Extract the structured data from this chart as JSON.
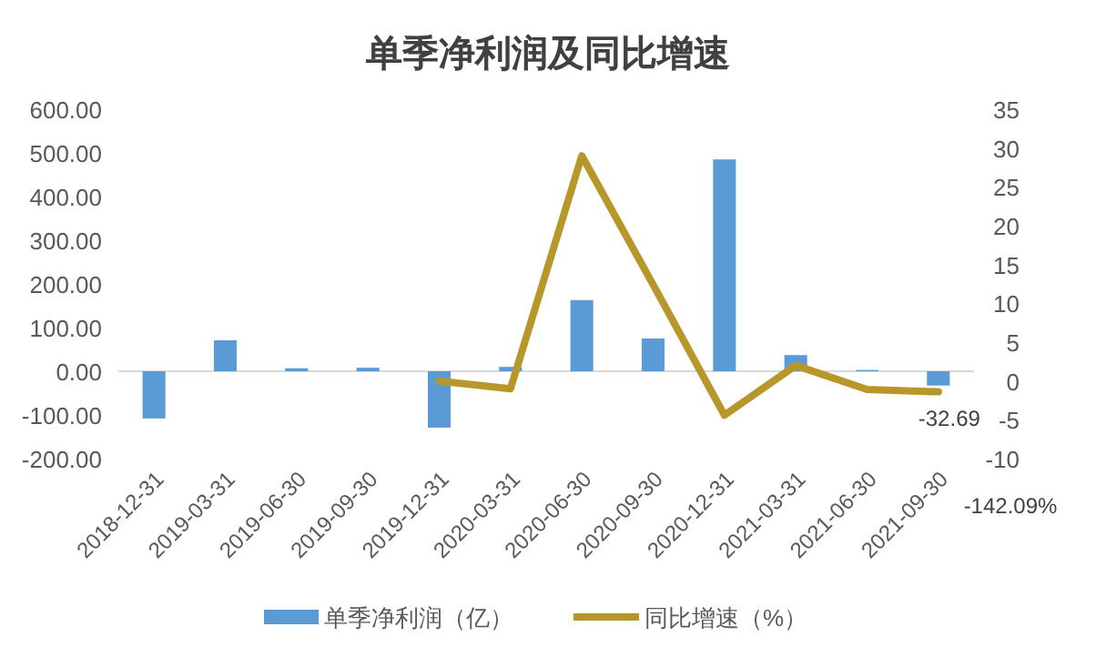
{
  "chart_data": {
    "type": "bar",
    "title": "单季净利润及同比增速",
    "categories": [
      "2018-12-31",
      "2019-03-31",
      "2019-06-30",
      "2019-09-30",
      "2019-12-31",
      "2020-03-31",
      "2020-06-30",
      "2020-09-30",
      "2020-12-31",
      "2021-03-31",
      "2021-06-30",
      "2021-09-30"
    ],
    "series": [
      {
        "name": "单季净利润（亿）",
        "color": "#5b9bd5",
        "values": [
          -108,
          71,
          7,
          8,
          -129,
          10,
          163,
          75,
          485,
          37,
          3,
          -32.69
        ],
        "value_labels": [
          null,
          null,
          null,
          null,
          null,
          null,
          null,
          null,
          null,
          null,
          null,
          "-32.69"
        ]
      },
      {
        "name": "同比增速（%）",
        "type": "line",
        "axis": "y2",
        "color": "#b8972a",
        "values": [
          null,
          null,
          null,
          null,
          0,
          -1,
          29,
          12.4,
          -4.4,
          2,
          -1.1,
          -1.4
        ]
      }
    ],
    "ylim": [
      -200,
      600
    ],
    "yticks": [
      {
        "value": -200,
        "label": "-200.00"
      },
      {
        "value": -100,
        "label": "-100.00"
      },
      {
        "value": 0,
        "label": "0.00"
      },
      {
        "value": 100,
        "label": "100.00"
      },
      {
        "value": 200,
        "label": "200.00"
      },
      {
        "value": 300,
        "label": "300.00"
      },
      {
        "value": 400,
        "label": "400.00"
      },
      {
        "value": 500,
        "label": "500.00"
      },
      {
        "value": 600,
        "label": "600.00"
      }
    ],
    "y2lim": [
      -10,
      35
    ],
    "y2ticks": [
      -10,
      -5,
      0,
      5,
      10,
      15,
      20,
      25,
      30,
      35
    ],
    "annotations": [
      "-142.09%"
    ],
    "legend": "bottom"
  }
}
